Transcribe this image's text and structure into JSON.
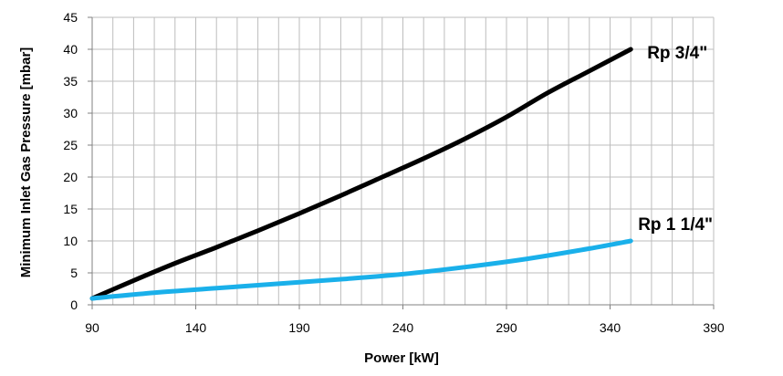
{
  "chart_data": {
    "type": "line",
    "title": "",
    "xlabel": "Power  [kW]",
    "ylabel": "Minimum Inlet Gas Pressure [mbar]",
    "xlim": [
      90,
      390
    ],
    "ylim": [
      0,
      45
    ],
    "x_ticks": [
      90,
      140,
      190,
      240,
      290,
      340,
      390
    ],
    "y_ticks": [
      0,
      5,
      10,
      15,
      20,
      25,
      30,
      35,
      40,
      45
    ],
    "x_minor_step": 10,
    "grid": true,
    "legend": "none (series labelled at line ends)",
    "series": [
      {
        "name": "Rp 3/4\"",
        "color": "#000000",
        "x": [
          90,
          110,
          130,
          150,
          170,
          190,
          210,
          230,
          250,
          270,
          290,
          310,
          330,
          350
        ],
        "y": [
          1,
          3.8,
          6.5,
          9.0,
          11.6,
          14.3,
          17.1,
          20.0,
          22.9,
          26.0,
          29.4,
          33.2,
          36.6,
          40
        ]
      },
      {
        "name": "Rp 1 1/4\"",
        "color": "#1ab0ea",
        "x": [
          90,
          120,
          150,
          180,
          210,
          240,
          270,
          300,
          330,
          350
        ],
        "y": [
          1,
          1.9,
          2.6,
          3.3,
          4.0,
          4.8,
          5.9,
          7.2,
          8.8,
          10
        ]
      }
    ]
  }
}
